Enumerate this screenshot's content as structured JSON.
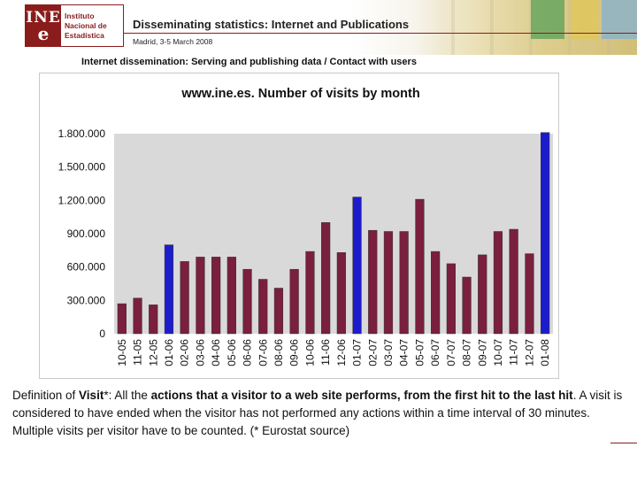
{
  "header": {
    "logo_mark_top": "INE",
    "logo_mark_bottom": "e",
    "logo_line1": "Instituto",
    "logo_line2": "Nacional de",
    "logo_line3": "Estadística",
    "title": "Disseminating statistics: Internet and Publications",
    "subtitle": "Madrid, 3-5 March 2008"
  },
  "section_title": "Internet dissemination: Serving and publishing data  /  Contact with users",
  "colors": {
    "bar_default": "#7a1f3d",
    "bar_highlight": "#1c1ccc",
    "chart_plot_bg": "#d9d9d9",
    "brand": "#8b1c1c"
  },
  "chart_data": {
    "type": "bar",
    "title": "www.ine.es. Number of visits by month",
    "xlabel": "",
    "ylabel": "",
    "ylim": [
      0,
      1800000
    ],
    "yticks": [
      0,
      300000,
      600000,
      900000,
      1200000,
      1500000,
      1800000
    ],
    "ytick_labels": [
      "0",
      "300.000",
      "600.000",
      "900.000",
      "1.200.000",
      "1.500.000",
      "1.800.000"
    ],
    "categories": [
      "10-05",
      "11-05",
      "12-05",
      "01-06",
      "02-06",
      "03-06",
      "04-06",
      "05-06",
      "06-06",
      "07-06",
      "08-06",
      "09-06",
      "10-06",
      "11-06",
      "12-06",
      "01-07",
      "02-07",
      "03-07",
      "04-07",
      "05-07",
      "06-07",
      "07-07",
      "08-07",
      "09-07",
      "10-07",
      "11-07",
      "12-07",
      "01-08"
    ],
    "values": [
      270000,
      320000,
      260000,
      800000,
      650000,
      690000,
      690000,
      690000,
      580000,
      490000,
      410000,
      580000,
      740000,
      1000000,
      730000,
      1230000,
      930000,
      920000,
      920000,
      1210000,
      740000,
      630000,
      510000,
      710000,
      920000,
      940000,
      720000,
      1810000
    ],
    "highlighted": [
      "01-06",
      "01-07",
      "01-08"
    ],
    "grid": false,
    "legend": "none"
  },
  "definition": {
    "part1": "Definition of ",
    "term": "Visit",
    "part2": "*: All the ",
    "emph1": "actions that a visitor to a web site performs, from the first hit to the last hit",
    "part3": ". A visit is considered to have ended when the visitor has not performed any actions within a time interval of 30 minutes. Multiple visits per visitor have to be counted. (* Eurostat source)"
  }
}
